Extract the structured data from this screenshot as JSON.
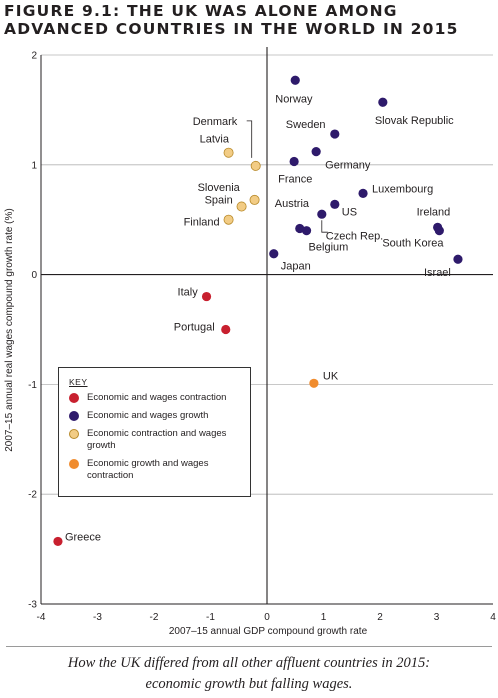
{
  "figure": {
    "title_line1": "FIGURE 9.1: THE UK WAS ALONE AMONG",
    "title_line2": "ADVANCED COUNTRIES IN THE WORLD IN 2015",
    "caption_line1": "How the UK differed from all other affluent countries in 2015:",
    "caption_line2": "economic growth but falling wages."
  },
  "chart_data": {
    "type": "scatter",
    "xlabel": "2007–15 annual GDP compound growth rate",
    "ylabel": "2007–15 annual real wages compound growth rate (%)",
    "xlim": [
      -4,
      4
    ],
    "ylim": [
      -3,
      2
    ],
    "xticks": [
      "-4",
      "-3",
      "-2",
      "-1",
      "0",
      "1",
      "2",
      "3",
      "4"
    ],
    "yticks": [
      "-3",
      "-2",
      "-1",
      "0",
      "1",
      "2"
    ],
    "grid": "horizontal",
    "legend": {
      "title": "KEY",
      "placement": "lower-left",
      "entries": [
        {
          "group": "contraction",
          "label": "Economic and wages contraction",
          "color": "#c8202f"
        },
        {
          "group": "growth",
          "label": "Economic and wages growth",
          "color": "#2e1a6b"
        },
        {
          "group": "mixed",
          "label": "Economic contraction and wages growth",
          "color": "#f2cc85"
        },
        {
          "group": "uk",
          "label": "Economic growth and wages contraction",
          "color": "#f08c2e"
        }
      ]
    },
    "points": [
      {
        "label": "Norway",
        "x": 0.5,
        "y": 1.77,
        "group": "growth"
      },
      {
        "label": "Slovak Republic",
        "x": 2.05,
        "y": 1.57,
        "group": "growth"
      },
      {
        "label": "Sweden",
        "x": 1.2,
        "y": 1.28,
        "group": "growth"
      },
      {
        "label": "Germany",
        "x": 0.87,
        "y": 1.12,
        "group": "growth"
      },
      {
        "label": "France",
        "x": 0.48,
        "y": 1.03,
        "group": "growth"
      },
      {
        "label": "Luxembourg",
        "x": 1.7,
        "y": 0.74,
        "group": "growth"
      },
      {
        "label": "US",
        "x": 1.2,
        "y": 0.64,
        "group": "growth"
      },
      {
        "label": "Austria",
        "x": 0.97,
        "y": 0.55,
        "group": "growth"
      },
      {
        "label": "Czech Rep.",
        "x": 0.58,
        "y": 0.42,
        "group": "growth"
      },
      {
        "label": "Belgium",
        "x": 0.7,
        "y": 0.4,
        "group": "growth"
      },
      {
        "label": "Ireland",
        "x": 3.02,
        "y": 0.43,
        "group": "growth"
      },
      {
        "label": "South Korea",
        "x": 3.05,
        "y": 0.4,
        "group": "growth"
      },
      {
        "label": "Israel",
        "x": 3.38,
        "y": 0.14,
        "group": "growth"
      },
      {
        "label": "Japan",
        "x": 0.12,
        "y": 0.19,
        "group": "growth"
      },
      {
        "label": "Denmark",
        "x": -0.2,
        "y": 0.99,
        "group": "mixed"
      },
      {
        "label": "Latvia",
        "x": -0.68,
        "y": 1.11,
        "group": "mixed"
      },
      {
        "label": "Slovenia",
        "x": -0.22,
        "y": 0.68,
        "group": "mixed"
      },
      {
        "label": "Spain",
        "x": -0.45,
        "y": 0.62,
        "group": "mixed"
      },
      {
        "label": "Finland",
        "x": -0.68,
        "y": 0.5,
        "group": "mixed"
      },
      {
        "label": "Italy",
        "x": -1.07,
        "y": -0.2,
        "group": "contraction"
      },
      {
        "label": "Portugal",
        "x": -0.73,
        "y": -0.5,
        "group": "contraction"
      },
      {
        "label": "Greece",
        "x": -3.7,
        "y": -2.43,
        "group": "contraction"
      },
      {
        "label": "UK",
        "x": 0.83,
        "y": -0.99,
        "group": "uk"
      }
    ]
  }
}
